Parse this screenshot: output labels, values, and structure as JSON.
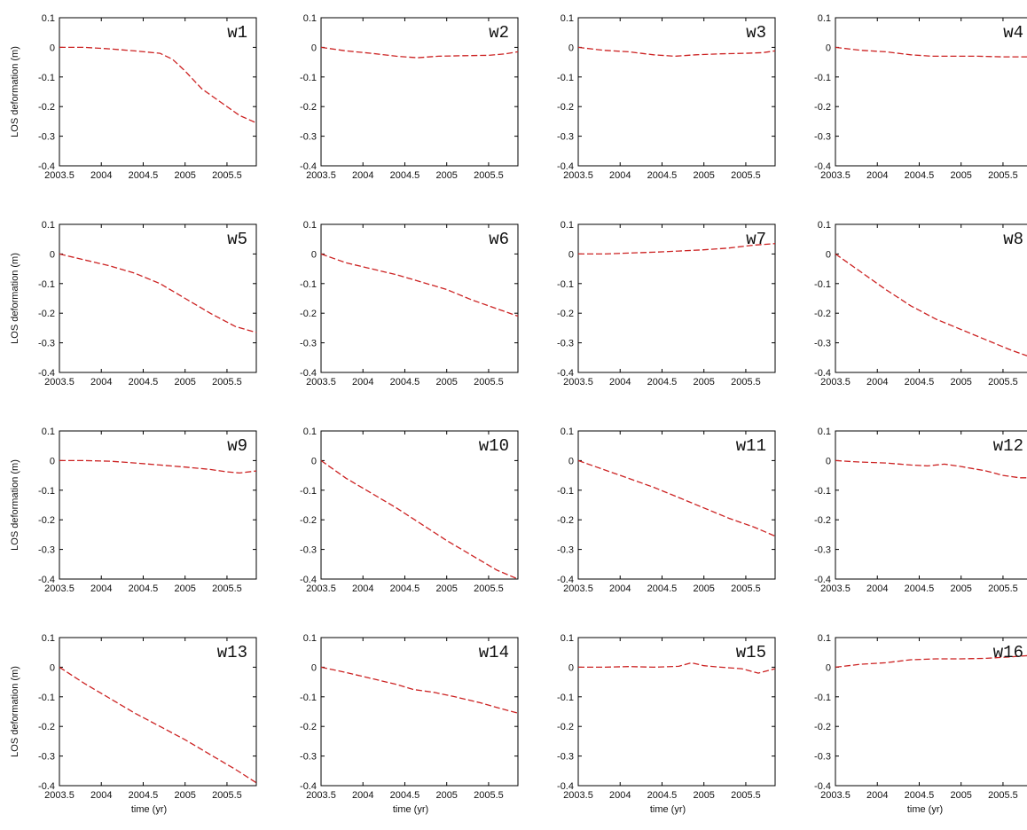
{
  "figure": {
    "ylabel": "LOS deformation (m)",
    "xlabel": "time (yr)",
    "line_color": "#cc2222"
  },
  "chart_data": [
    {
      "type": "line",
      "label": "w1",
      "xlim": [
        2003.5,
        2005.85
      ],
      "ylim": [
        -0.4,
        0.1
      ],
      "x_ticks": [
        "2003.5",
        "2004",
        "2004.5",
        "2005",
        "2005.5"
      ],
      "y_ticks": [
        "0.1",
        "0",
        "-0.1",
        "-0.2",
        "-0.3",
        "-0.4"
      ],
      "x": [
        2003.5,
        2003.8,
        2004.1,
        2004.4,
        2004.7,
        2004.85,
        2005.0,
        2005.2,
        2005.45,
        2005.65,
        2005.85
      ],
      "y": [
        0.0,
        0.0,
        -0.005,
        -0.012,
        -0.02,
        -0.04,
        -0.08,
        -0.14,
        -0.19,
        -0.23,
        -0.255
      ]
    },
    {
      "type": "line",
      "label": "w2",
      "xlim": [
        2003.5,
        2005.85
      ],
      "ylim": [
        -0.4,
        0.1
      ],
      "x_ticks": [
        "2003.5",
        "2004",
        "2004.5",
        "2005",
        "2005.5"
      ],
      "y_ticks": [
        "0.1",
        "0",
        "-0.1",
        "-0.2",
        "-0.3",
        "-0.4"
      ],
      "x": [
        2003.5,
        2003.8,
        2004.1,
        2004.4,
        2004.65,
        2004.9,
        2005.2,
        2005.5,
        2005.7,
        2005.85
      ],
      "y": [
        0.0,
        -0.012,
        -0.02,
        -0.03,
        -0.035,
        -0.03,
        -0.028,
        -0.027,
        -0.022,
        -0.015
      ]
    },
    {
      "type": "line",
      "label": "w3",
      "xlim": [
        2003.5,
        2005.85
      ],
      "ylim": [
        -0.4,
        0.1
      ],
      "x_ticks": [
        "2003.5",
        "2004",
        "2004.5",
        "2005",
        "2005.5"
      ],
      "y_ticks": [
        "0.1",
        "0",
        "-0.1",
        "-0.2",
        "-0.3",
        "-0.4"
      ],
      "x": [
        2003.5,
        2003.8,
        2004.1,
        2004.4,
        2004.65,
        2004.9,
        2005.2,
        2005.5,
        2005.7,
        2005.85
      ],
      "y": [
        0.0,
        -0.01,
        -0.015,
        -0.025,
        -0.03,
        -0.025,
        -0.022,
        -0.02,
        -0.018,
        -0.012
      ]
    },
    {
      "type": "line",
      "label": "w4",
      "xlim": [
        2003.5,
        2005.85
      ],
      "ylim": [
        -0.4,
        0.1
      ],
      "x_ticks": [
        "2003.5",
        "2004",
        "2004.5",
        "2005",
        "2005.5"
      ],
      "y_ticks": [
        "0.1",
        "0",
        "-0.1",
        "-0.2",
        "-0.3",
        "-0.4"
      ],
      "x": [
        2003.5,
        2003.8,
        2004.1,
        2004.4,
        2004.65,
        2004.9,
        2005.2,
        2005.5,
        2005.7,
        2005.85
      ],
      "y": [
        0.0,
        -0.01,
        -0.015,
        -0.025,
        -0.03,
        -0.03,
        -0.03,
        -0.032,
        -0.032,
        -0.032
      ]
    },
    {
      "type": "line",
      "label": "w5",
      "xlim": [
        2003.5,
        2005.85
      ],
      "ylim": [
        -0.4,
        0.1
      ],
      "x_ticks": [
        "2003.5",
        "2004",
        "2004.5",
        "2005",
        "2005.5"
      ],
      "y_ticks": [
        "0.1",
        "0",
        "-0.1",
        "-0.2",
        "-0.3",
        "-0.4"
      ],
      "x": [
        2003.5,
        2003.8,
        2004.1,
        2004.4,
        2004.7,
        2005.0,
        2005.3,
        2005.6,
        2005.85
      ],
      "y": [
        0.0,
        -0.02,
        -0.04,
        -0.065,
        -0.1,
        -0.15,
        -0.2,
        -0.245,
        -0.265
      ]
    },
    {
      "type": "line",
      "label": "w6",
      "xlim": [
        2003.5,
        2005.85
      ],
      "ylim": [
        -0.4,
        0.1
      ],
      "x_ticks": [
        "2003.5",
        "2004",
        "2004.5",
        "2005",
        "2005.5"
      ],
      "y_ticks": [
        "0.1",
        "0",
        "-0.1",
        "-0.2",
        "-0.3",
        "-0.4"
      ],
      "x": [
        2003.5,
        2003.8,
        2004.1,
        2004.4,
        2004.7,
        2005.0,
        2005.3,
        2005.6,
        2005.85
      ],
      "y": [
        0.0,
        -0.03,
        -0.05,
        -0.07,
        -0.095,
        -0.12,
        -0.155,
        -0.185,
        -0.21
      ]
    },
    {
      "type": "line",
      "label": "w7",
      "xlim": [
        2003.5,
        2005.85
      ],
      "ylim": [
        -0.4,
        0.1
      ],
      "x_ticks": [
        "2003.5",
        "2004",
        "2004.5",
        "2005",
        "2005.5"
      ],
      "y_ticks": [
        "0.1",
        "0",
        "-0.1",
        "-0.2",
        "-0.3",
        "-0.4"
      ],
      "x": [
        2003.5,
        2003.8,
        2004.1,
        2004.4,
        2004.7,
        2005.0,
        2005.3,
        2005.6,
        2005.85
      ],
      "y": [
        0.0,
        0.0,
        0.003,
        0.006,
        0.01,
        0.014,
        0.02,
        0.03,
        0.035
      ]
    },
    {
      "type": "line",
      "label": "w8",
      "xlim": [
        2003.5,
        2005.85
      ],
      "ylim": [
        -0.4,
        0.1
      ],
      "x_ticks": [
        "2003.5",
        "2004",
        "2004.5",
        "2005",
        "2005.5"
      ],
      "y_ticks": [
        "0.1",
        "0",
        "-0.1",
        "-0.2",
        "-0.3",
        "-0.4"
      ],
      "x": [
        2003.5,
        2003.8,
        2004.1,
        2004.4,
        2004.7,
        2005.0,
        2005.3,
        2005.6,
        2005.85
      ],
      "y": [
        0.0,
        -0.06,
        -0.12,
        -0.175,
        -0.22,
        -0.255,
        -0.29,
        -0.325,
        -0.35
      ]
    },
    {
      "type": "line",
      "label": "w9",
      "xlim": [
        2003.5,
        2005.85
      ],
      "ylim": [
        -0.4,
        0.1
      ],
      "x_ticks": [
        "2003.5",
        "2004",
        "2004.5",
        "2005",
        "2005.5"
      ],
      "y_ticks": [
        "0.1",
        "0",
        "-0.1",
        "-0.2",
        "-0.3",
        "-0.4"
      ],
      "x": [
        2003.5,
        2003.8,
        2004.1,
        2004.4,
        2004.7,
        2005.0,
        2005.3,
        2005.5,
        2005.65,
        2005.85
      ],
      "y": [
        0.0,
        0.0,
        -0.002,
        -0.008,
        -0.015,
        -0.022,
        -0.03,
        -0.038,
        -0.042,
        -0.035
      ]
    },
    {
      "type": "line",
      "label": "w10",
      "xlim": [
        2003.5,
        2005.85
      ],
      "ylim": [
        -0.4,
        0.1
      ],
      "x_ticks": [
        "2003.5",
        "2004",
        "2004.5",
        "2005",
        "2005.5"
      ],
      "y_ticks": [
        "0.1",
        "0",
        "-0.1",
        "-0.2",
        "-0.3",
        "-0.4"
      ],
      "x": [
        2003.5,
        2003.8,
        2004.1,
        2004.4,
        2004.7,
        2005.0,
        2005.3,
        2005.6,
        2005.85
      ],
      "y": [
        0.0,
        -0.06,
        -0.11,
        -0.16,
        -0.215,
        -0.27,
        -0.32,
        -0.37,
        -0.405
      ]
    },
    {
      "type": "line",
      "label": "w11",
      "xlim": [
        2003.5,
        2005.85
      ],
      "ylim": [
        -0.4,
        0.1
      ],
      "x_ticks": [
        "2003.5",
        "2004",
        "2004.5",
        "2005",
        "2005.5"
      ],
      "y_ticks": [
        "0.1",
        "0",
        "-0.1",
        "-0.2",
        "-0.3",
        "-0.4"
      ],
      "x": [
        2003.5,
        2003.8,
        2004.1,
        2004.4,
        2004.7,
        2005.0,
        2005.3,
        2005.6,
        2005.85
      ],
      "y": [
        0.0,
        -0.03,
        -0.06,
        -0.09,
        -0.125,
        -0.16,
        -0.195,
        -0.225,
        -0.255
      ]
    },
    {
      "type": "line",
      "label": "w12",
      "xlim": [
        2003.5,
        2005.85
      ],
      "ylim": [
        -0.4,
        0.1
      ],
      "x_ticks": [
        "2003.5",
        "2004",
        "2004.5",
        "2005",
        "2005.5"
      ],
      "y_ticks": [
        "0.1",
        "0",
        "-0.1",
        "-0.2",
        "-0.3",
        "-0.4"
      ],
      "x": [
        2003.5,
        2003.8,
        2004.1,
        2004.4,
        2004.6,
        2004.8,
        2005.0,
        2005.3,
        2005.5,
        2005.7,
        2005.85
      ],
      "y": [
        0.0,
        -0.005,
        -0.008,
        -0.015,
        -0.018,
        -0.012,
        -0.02,
        -0.035,
        -0.05,
        -0.058,
        -0.058
      ]
    },
    {
      "type": "line",
      "label": "w13",
      "xlim": [
        2003.5,
        2005.85
      ],
      "ylim": [
        -0.4,
        0.1
      ],
      "x_ticks": [
        "2003.5",
        "2004",
        "2004.5",
        "2005",
        "2005.5"
      ],
      "y_ticks": [
        "0.1",
        "0",
        "-0.1",
        "-0.2",
        "-0.3",
        "-0.4"
      ],
      "x": [
        2003.5,
        2003.8,
        2004.1,
        2004.4,
        2004.7,
        2005.0,
        2005.3,
        2005.6,
        2005.85
      ],
      "y": [
        0.0,
        -0.055,
        -0.105,
        -0.155,
        -0.2,
        -0.245,
        -0.295,
        -0.345,
        -0.39
      ]
    },
    {
      "type": "line",
      "label": "w14",
      "xlim": [
        2003.5,
        2005.85
      ],
      "ylim": [
        -0.4,
        0.1
      ],
      "x_ticks": [
        "2003.5",
        "2004",
        "2004.5",
        "2005",
        "2005.5"
      ],
      "y_ticks": [
        "0.1",
        "0",
        "-0.1",
        "-0.2",
        "-0.3",
        "-0.4"
      ],
      "x": [
        2003.5,
        2003.8,
        2004.1,
        2004.4,
        2004.6,
        2004.85,
        2005.1,
        2005.4,
        2005.65,
        2005.85
      ],
      "y": [
        0.0,
        -0.018,
        -0.038,
        -0.058,
        -0.075,
        -0.085,
        -0.1,
        -0.12,
        -0.14,
        -0.155
      ]
    },
    {
      "type": "line",
      "label": "w15",
      "xlim": [
        2003.5,
        2005.85
      ],
      "ylim": [
        -0.4,
        0.1
      ],
      "x_ticks": [
        "2003.5",
        "2004",
        "2004.5",
        "2005",
        "2005.5"
      ],
      "y_ticks": [
        "0.1",
        "0",
        "-0.1",
        "-0.2",
        "-0.3",
        "-0.4"
      ],
      "x": [
        2003.5,
        2003.8,
        2004.1,
        2004.4,
        2004.7,
        2004.85,
        2005.0,
        2005.2,
        2005.45,
        2005.65,
        2005.85
      ],
      "y": [
        0.0,
        0.0,
        0.002,
        0.0,
        0.003,
        0.015,
        0.005,
        0.0,
        -0.005,
        -0.02,
        -0.005
      ]
    },
    {
      "type": "line",
      "label": "w16",
      "xlim": [
        2003.5,
        2005.85
      ],
      "ylim": [
        -0.4,
        0.1
      ],
      "x_ticks": [
        "2003.5",
        "2004",
        "2004.5",
        "2005",
        "2005.5"
      ],
      "y_ticks": [
        "0.1",
        "0",
        "-0.1",
        "-0.2",
        "-0.3",
        "-0.4"
      ],
      "x": [
        2003.5,
        2003.8,
        2004.1,
        2004.4,
        2004.7,
        2005.0,
        2005.3,
        2005.6,
        2005.85
      ],
      "y": [
        0.0,
        0.01,
        0.015,
        0.025,
        0.028,
        0.028,
        0.03,
        0.035,
        0.04
      ]
    }
  ]
}
